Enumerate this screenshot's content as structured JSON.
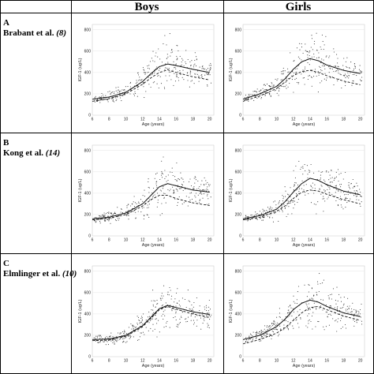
{
  "columns": [
    "Boys",
    "Girls"
  ],
  "rows": [
    {
      "letter": "A",
      "author": "Brabant et al.",
      "ref": "(8)"
    },
    {
      "letter": "B",
      "author": "Kong et al.",
      "ref": "(14)"
    },
    {
      "letter": "C",
      "author": "Elmlinger et al.",
      "ref": "(10)"
    }
  ],
  "chart_data": [
    {
      "type": "scatter",
      "row": "A",
      "column": "Boys",
      "xlabel": "Age (years)",
      "ylabel": "IGF-1 (ug/L)",
      "xlim": [
        6,
        20.5
      ],
      "ylim": [
        0,
        850
      ],
      "xticks": [
        6,
        8,
        10,
        12,
        14,
        16,
        18,
        20
      ],
      "yticks": [
        0,
        200,
        400,
        600,
        800
      ],
      "series": [
        {
          "style": "solid",
          "x": [
            6,
            8,
            10,
            12,
            13,
            14,
            15,
            16,
            18,
            20
          ],
          "y": [
            150,
            170,
            215,
            315,
            390,
            455,
            480,
            465,
            430,
            400
          ]
        },
        {
          "style": "dashed",
          "x": [
            6,
            8,
            10,
            12,
            13,
            14,
            15,
            16,
            18,
            20
          ],
          "y": [
            130,
            155,
            200,
            290,
            350,
            400,
            425,
            400,
            360,
            330
          ]
        }
      ]
    },
    {
      "type": "scatter",
      "row": "A",
      "column": "Girls",
      "xlabel": "Age (years)",
      "ylabel": "IGF-1 (ug/L)",
      "xlim": [
        6,
        20.5
      ],
      "ylim": [
        0,
        850
      ],
      "xticks": [
        6,
        8,
        10,
        12,
        14,
        16,
        18,
        20
      ],
      "yticks": [
        0,
        200,
        400,
        600,
        800
      ],
      "series": [
        {
          "style": "solid",
          "x": [
            6,
            8,
            10,
            11,
            12,
            13,
            14,
            15,
            16,
            18,
            20
          ],
          "y": [
            150,
            200,
            270,
            340,
            430,
            500,
            530,
            510,
            470,
            420,
            390
          ]
        },
        {
          "style": "dashed",
          "x": [
            6,
            8,
            10,
            11,
            12,
            13,
            14,
            15,
            16,
            18,
            20
          ],
          "y": [
            130,
            180,
            250,
            310,
            370,
            410,
            420,
            400,
            370,
            320,
            285
          ]
        }
      ]
    },
    {
      "type": "scatter",
      "row": "B",
      "column": "Boys",
      "xlabel": "Age (years)",
      "ylabel": "IGF-1 (ug/L)",
      "xlim": [
        6,
        20.5
      ],
      "ylim": [
        0,
        850
      ],
      "xticks": [
        6,
        8,
        10,
        12,
        14,
        16,
        18,
        20
      ],
      "yticks": [
        0,
        200,
        400,
        600,
        800
      ],
      "series": [
        {
          "style": "solid",
          "x": [
            6,
            8,
            10,
            12,
            13,
            14,
            15,
            16,
            18,
            20
          ],
          "y": [
            160,
            175,
            215,
            300,
            380,
            460,
            490,
            470,
            430,
            410
          ]
        },
        {
          "style": "dashed",
          "x": [
            6,
            8,
            10,
            12,
            13,
            14,
            15,
            16,
            18,
            20
          ],
          "y": [
            150,
            165,
            200,
            280,
            340,
            380,
            380,
            350,
            310,
            285
          ]
        }
      ]
    },
    {
      "type": "scatter",
      "row": "B",
      "column": "Girls",
      "xlabel": "Age (years)",
      "ylabel": "IGF-1 (ug/L)",
      "xlim": [
        6,
        20.5
      ],
      "ylim": [
        0,
        850
      ],
      "xticks": [
        6,
        8,
        10,
        12,
        14,
        16,
        18,
        20
      ],
      "yticks": [
        0,
        200,
        400,
        600,
        800
      ],
      "series": [
        {
          "style": "solid",
          "x": [
            6,
            8,
            10,
            11,
            12,
            13,
            14,
            15,
            16,
            18,
            20
          ],
          "y": [
            160,
            190,
            250,
            320,
            410,
            490,
            540,
            520,
            480,
            420,
            385
          ]
        },
        {
          "style": "dashed",
          "x": [
            6,
            8,
            10,
            11,
            12,
            13,
            14,
            15,
            16,
            18,
            20
          ],
          "y": [
            150,
            175,
            230,
            280,
            350,
            410,
            430,
            420,
            390,
            340,
            300
          ]
        }
      ]
    },
    {
      "type": "scatter",
      "row": "C",
      "column": "Boys",
      "xlabel": "Age (years)",
      "ylabel": "IGF-1 (ug/L)",
      "xlim": [
        6,
        20.5
      ],
      "ylim": [
        0,
        850
      ],
      "xticks": [
        6,
        8,
        10,
        12,
        14,
        16,
        18,
        20
      ],
      "yticks": [
        0,
        200,
        400,
        600,
        800
      ],
      "series": [
        {
          "style": "solid",
          "x": [
            6,
            8,
            10,
            12,
            13,
            14,
            15,
            16,
            18,
            20
          ],
          "y": [
            160,
            165,
            200,
            290,
            370,
            450,
            480,
            460,
            420,
            395
          ]
        },
        {
          "style": "dashed",
          "x": [
            6,
            8,
            10,
            12,
            13,
            14,
            15,
            16,
            18,
            20
          ],
          "y": [
            150,
            155,
            190,
            280,
            360,
            440,
            470,
            445,
            400,
            365
          ]
        }
      ]
    },
    {
      "type": "scatter",
      "row": "C",
      "column": "Girls",
      "xlabel": "Age (years)",
      "ylabel": "IGF-1 (ug/L)",
      "xlim": [
        6,
        20.5
      ],
      "ylim": [
        0,
        850
      ],
      "xticks": [
        6,
        8,
        10,
        12,
        14,
        16,
        18,
        20
      ],
      "yticks": [
        0,
        200,
        400,
        600,
        800
      ],
      "series": [
        {
          "style": "solid",
          "x": [
            6,
            8,
            10,
            11,
            12,
            13,
            14,
            15,
            16,
            18,
            20
          ],
          "y": [
            160,
            200,
            280,
            350,
            440,
            500,
            530,
            510,
            470,
            410,
            375
          ]
        },
        {
          "style": "dashed",
          "x": [
            6,
            8,
            10,
            11,
            12,
            13,
            14,
            15,
            16,
            18,
            20
          ],
          "y": [
            120,
            160,
            220,
            270,
            340,
            410,
            460,
            470,
            440,
            380,
            340
          ]
        }
      ]
    }
  ]
}
